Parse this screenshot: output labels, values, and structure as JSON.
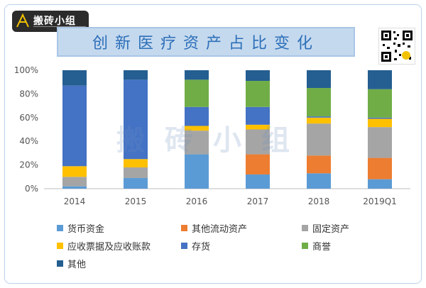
{
  "brand": {
    "name": "搬砖小组",
    "sub": ""
  },
  "watermark": "搬砖小组",
  "chart_data": {
    "type": "bar",
    "stacked": true,
    "percent": true,
    "title": "创新医疗资产占比变化",
    "categories": [
      "2014",
      "2015",
      "2016",
      "2017",
      "2018",
      "2019Q1"
    ],
    "ylim": [
      0,
      100
    ],
    "yticks": [
      "0%",
      "20%",
      "40%",
      "60%",
      "80%",
      "100%"
    ],
    "grid": false,
    "legend_position": "bottom",
    "series": [
      {
        "name": "货币资金",
        "color": "#5b9bd5",
        "values": [
          2,
          9,
          29,
          12,
          13,
          8
        ]
      },
      {
        "name": "其他流动资产",
        "color": "#ed7d31",
        "values": [
          0,
          0,
          0,
          17,
          15,
          18
        ]
      },
      {
        "name": "固定资产",
        "color": "#a5a5a5",
        "values": [
          8,
          9,
          20,
          21,
          27,
          26
        ]
      },
      {
        "name": "应收票据及应收账款",
        "color": "#ffc000",
        "values": [
          9,
          7,
          4,
          4,
          5,
          7
        ]
      },
      {
        "name": "存货",
        "color": "#4472c4",
        "values": [
          68,
          67,
          16,
          15,
          1,
          1
        ]
      },
      {
        "name": "商誉",
        "color": "#70ad47",
        "values": [
          0,
          0,
          23,
          22,
          24,
          24
        ]
      },
      {
        "name": "其他",
        "color": "#255e91",
        "values": [
          13,
          8,
          8,
          9,
          15,
          16
        ]
      }
    ]
  }
}
